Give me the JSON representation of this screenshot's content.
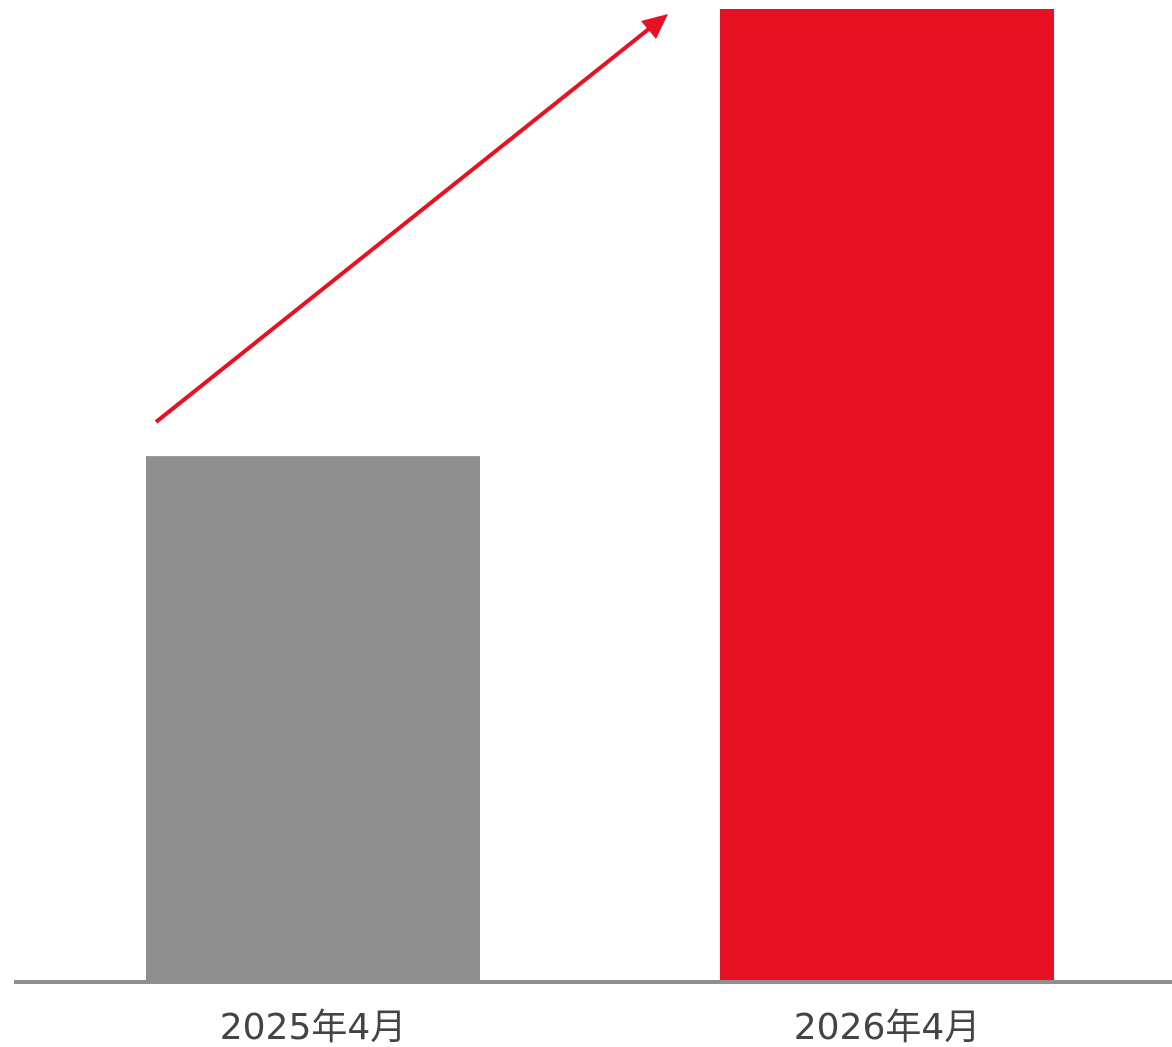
{
  "chart_data": {
    "type": "bar",
    "categories": [
      "2025年4月",
      "2026年4月"
    ],
    "values": [
      54,
      100
    ],
    "colors": [
      "#8f8f8f",
      "#e81123"
    ]
  }
}
